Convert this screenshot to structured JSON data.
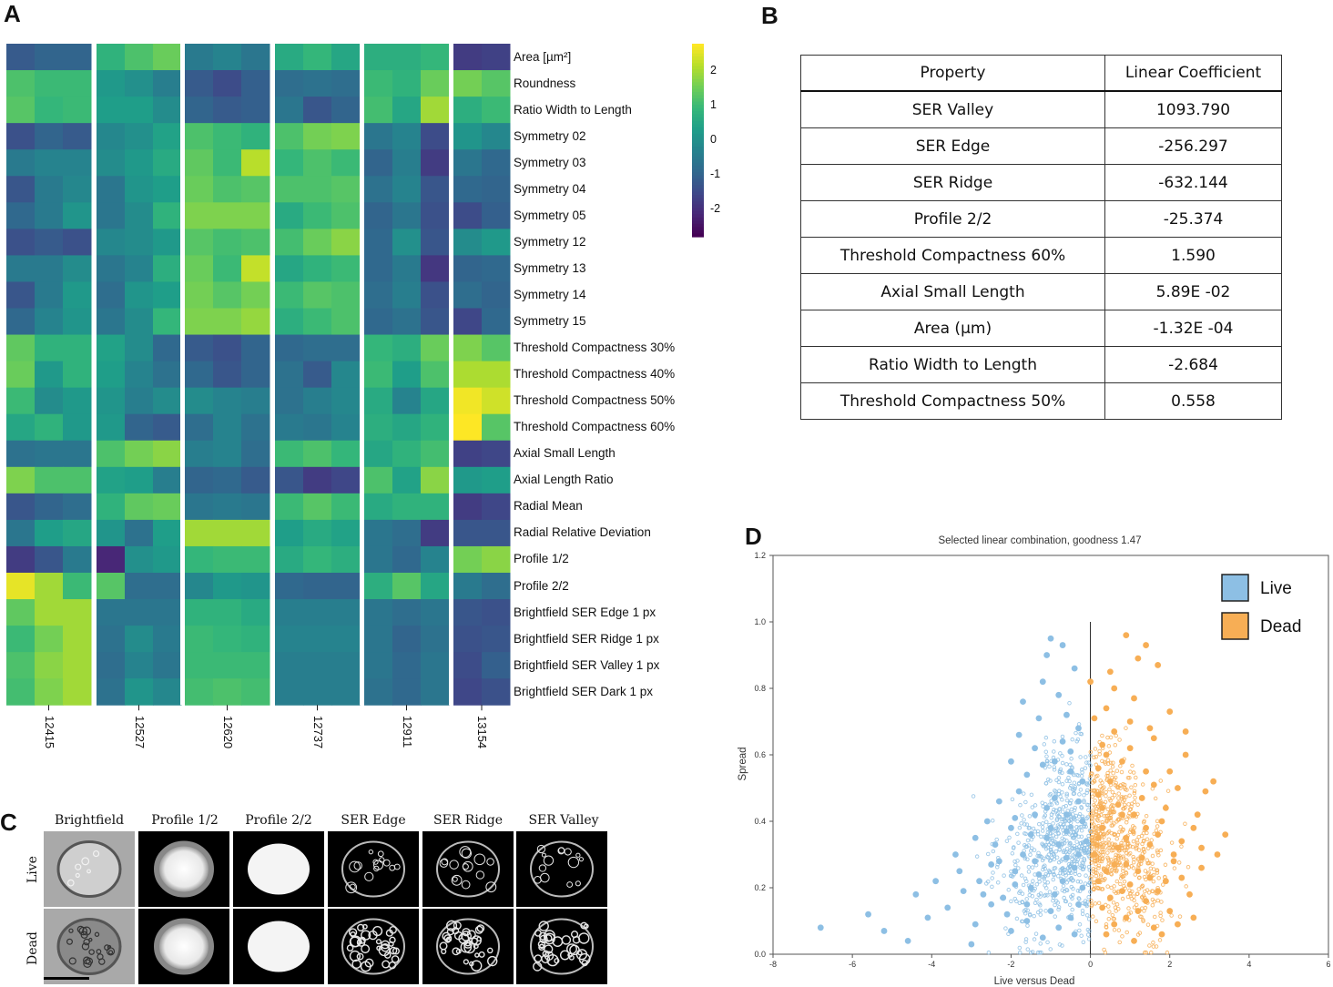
{
  "panels": {
    "a": "A",
    "b": "B",
    "c": "C",
    "d": "D"
  },
  "heatmap": {
    "features": [
      "Area [µm²]",
      "Roundness",
      "Ratio Width to Length",
      "Symmetry 02",
      "Symmetry 03",
      "Symmetry 04",
      "Symmetry 05",
      "Symmetry 12",
      "Symmetry 13",
      "Symmetry 14",
      "Symmetry 15",
      "Threshold Compactness 30%",
      "Threshold Compactness 40%",
      "Threshold Compactness 50%",
      "Threshold Compactness 60%",
      "Axial Small Length",
      "Axial Length Ratio",
      "Radial Mean",
      "Radial Relative Deviation",
      "Profile 1/2",
      "Profile 2/2",
      "Brightfield SER Edge 1 px",
      "Brightfield SER Ridge 1 px",
      "Brightfield SER Valley 1 px",
      "Brightfield SER Dark 1 px"
    ],
    "groups": [
      "12415",
      "12527",
      "12620",
      "12737",
      "12911",
      "13154"
    ],
    "colorbar_ticks": [
      "2",
      "1",
      "0",
      "-1",
      "-2"
    ],
    "colorbar_range": [
      -2.8,
      2.8
    ],
    "values": [
      [
        -1.2,
        -1.0,
        -1.0,
        0.8,
        1.2,
        1.5,
        -0.5,
        -0.3,
        -0.6,
        0.6,
        0.9,
        0.5,
        0.7,
        0.7,
        0.9,
        -1.8,
        -1.7
      ],
      [
        1.2,
        1.0,
        1.0,
        0.2,
        0.0,
        -0.4,
        -1.2,
        -1.5,
        -1.1,
        -0.8,
        -0.7,
        -0.8,
        1.0,
        0.8,
        1.5,
        1.6,
        1.3
      ],
      [
        1.3,
        0.9,
        1.0,
        0.3,
        0.3,
        -0.1,
        -1.0,
        -1.2,
        -1.1,
        -0.6,
        -1.3,
        -1.0,
        1.1,
        0.5,
        2.0,
        0.7,
        1.0
      ],
      [
        -1.4,
        -1.0,
        -1.2,
        -0.2,
        0.0,
        0.4,
        1.2,
        1.0,
        0.8,
        1.2,
        1.6,
        1.7,
        -0.6,
        -0.3,
        -1.5,
        0.1,
        -0.2
      ],
      [
        -0.5,
        -0.3,
        -0.3,
        -0.1,
        0.2,
        0.6,
        1.4,
        1.0,
        2.2,
        0.9,
        1.2,
        1.0,
        -1.0,
        -0.4,
        -1.8,
        -0.6,
        -0.9
      ],
      [
        -1.3,
        -0.5,
        -0.2,
        -0.6,
        0.1,
        0.3,
        1.5,
        1.2,
        1.3,
        1.2,
        1.2,
        1.3,
        -0.7,
        -0.3,
        -1.3,
        -0.9,
        -1.0
      ],
      [
        -0.9,
        -0.5,
        0.1,
        -0.6,
        -0.1,
        0.8,
        1.7,
        1.7,
        1.7,
        0.6,
        1.0,
        1.2,
        -1.0,
        -0.6,
        -1.4,
        -1.5,
        -1.1
      ],
      [
        -1.4,
        -1.2,
        -1.4,
        -0.2,
        -0.1,
        0.2,
        1.3,
        1.1,
        1.2,
        1.1,
        1.5,
        1.8,
        -0.9,
        0.0,
        -1.3,
        -0.1,
        0.2
      ],
      [
        -0.5,
        -0.5,
        -0.1,
        -0.6,
        -0.3,
        0.7,
        1.5,
        1.0,
        2.3,
        0.5,
        0.8,
        1.0,
        -0.9,
        -0.5,
        -1.9,
        -1.0,
        -0.9
      ],
      [
        -1.3,
        -0.5,
        0.2,
        -0.8,
        0.1,
        0.3,
        1.6,
        1.3,
        1.6,
        1.0,
        1.3,
        1.2,
        -0.8,
        -0.4,
        -1.4,
        -0.8,
        -1.0
      ],
      [
        -0.9,
        -0.3,
        0.1,
        -0.6,
        -0.1,
        0.9,
        1.7,
        1.7,
        1.9,
        0.7,
        1.0,
        1.2,
        -0.9,
        -0.7,
        -1.3,
        -1.6,
        -0.9
      ],
      [
        1.4,
        0.8,
        0.8,
        0.4,
        -0.1,
        -0.9,
        -1.2,
        -1.4,
        -1.0,
        -0.9,
        -0.8,
        -0.8,
        0.9,
        0.7,
        1.5,
        1.7,
        1.3
      ],
      [
        1.5,
        0.2,
        0.8,
        0.3,
        -0.3,
        -0.7,
        -0.9,
        -1.3,
        -1.0,
        -0.7,
        -1.2,
        -0.2,
        1.0,
        0.3,
        1.2,
        2.1,
        2.1
      ],
      [
        1.0,
        -0.1,
        0.2,
        0.1,
        -0.4,
        -0.1,
        -0.1,
        -0.3,
        -0.4,
        -0.7,
        -0.4,
        -0.2,
        0.6,
        -0.3,
        0.5,
        2.7,
        2.4
      ],
      [
        0.5,
        0.8,
        0.2,
        0.2,
        -1.0,
        -1.2,
        -0.8,
        -0.3,
        -0.7,
        -0.5,
        -0.6,
        -0.3,
        0.7,
        0.5,
        0.8,
        2.8,
        1.3
      ],
      [
        -0.7,
        -0.6,
        -0.6,
        1.2,
        1.6,
        1.8,
        -0.4,
        -0.3,
        -0.8,
        1.0,
        1.2,
        0.9,
        0.5,
        0.8,
        1.1,
        -1.7,
        -1.6
      ],
      [
        1.7,
        1.2,
        1.2,
        0.4,
        0.3,
        -0.4,
        -1.0,
        -0.9,
        -1.2,
        -1.3,
        -1.8,
        -1.6,
        1.2,
        0.4,
        1.8,
        0.2,
        0.3
      ],
      [
        -1.3,
        -1.0,
        -0.8,
        0.8,
        1.4,
        1.5,
        -0.6,
        -0.5,
        -0.6,
        1.0,
        1.3,
        1.0,
        0.6,
        0.8,
        0.8,
        -1.8,
        -1.6
      ],
      [
        -0.6,
        0.3,
        0.5,
        0.1,
        -0.7,
        0.3,
        2.0,
        2.0,
        2.0,
        0.3,
        0.6,
        0.4,
        -0.6,
        -0.8,
        -1.8,
        -1.3,
        -1.3
      ],
      [
        -1.8,
        -1.3,
        -0.5,
        -2.2,
        0.0,
        0.2,
        0.9,
        1.0,
        1.0,
        0.6,
        0.9,
        0.7,
        -0.6,
        -0.9,
        -0.3,
        1.6,
        1.8
      ],
      [
        2.6,
        2.0,
        1.0,
        1.3,
        -0.8,
        -0.8,
        -0.2,
        0.2,
        0.1,
        -0.9,
        -1.0,
        -1.0,
        0.7,
        1.3,
        0.5,
        -0.5,
        -0.8
      ],
      [
        1.4,
        2.0,
        2.0,
        -0.6,
        -0.6,
        -0.6,
        0.8,
        0.8,
        0.6,
        -0.4,
        -0.4,
        -0.4,
        -0.6,
        -0.8,
        -0.6,
        -1.3,
        -1.4
      ],
      [
        1.0,
        1.6,
        2.0,
        -0.7,
        -0.1,
        -0.5,
        1.0,
        0.9,
        0.8,
        -0.3,
        -0.3,
        -0.3,
        -0.6,
        -1.0,
        -0.7,
        -1.4,
        -1.3
      ],
      [
        1.2,
        1.8,
        2.0,
        -0.8,
        -0.3,
        -0.6,
        1.0,
        1.0,
        1.0,
        -0.4,
        -0.4,
        -0.4,
        -0.6,
        -0.9,
        -0.6,
        -1.5,
        -1.1
      ],
      [
        1.1,
        1.7,
        2.0,
        -0.7,
        0.1,
        -0.2,
        1.1,
        1.2,
        1.1,
        -0.4,
        -0.4,
        -0.4,
        -0.7,
        -0.9,
        -0.6,
        -1.6,
        -1.4
      ]
    ]
  },
  "coef_table": {
    "headers": [
      "Property",
      "Linear Coefficient"
    ],
    "rows": [
      [
        "SER Valley",
        "1093.790"
      ],
      [
        "SER Edge",
        "-256.297"
      ],
      [
        "SER Ridge",
        "-632.144"
      ],
      [
        "Profile 2/2",
        "-25.374"
      ],
      [
        "Threshold Compactness 60%",
        "1.590"
      ],
      [
        "Axial Small Length",
        "5.89E  -02"
      ],
      [
        "Area (µm)",
        "-1.32E  -04"
      ],
      [
        "Ratio Width to Length",
        "-2.684"
      ],
      [
        "Threshold Compactness 50%",
        "0.558"
      ]
    ]
  },
  "micrographs": {
    "columns": [
      "Brightfield",
      "Profile 1/2",
      "Profile 2/2",
      "SER Edge",
      "SER Ridge",
      "SER Valley"
    ],
    "rows": [
      "Live",
      "Dead"
    ]
  },
  "chart_data": {
    "type": "scatter",
    "title": "Selected linear combination, goodness 1.47",
    "xlabel": "Live versus Dead",
    "ylabel": "Spread",
    "xlim": [
      -8,
      6
    ],
    "ylim": [
      0.0,
      1.2
    ],
    "xticks": [
      "-8",
      "-6",
      "-4",
      "-2",
      "0",
      "2",
      "4",
      "6"
    ],
    "yticks": [
      "0.0",
      "0.2",
      "0.4",
      "0.6",
      "0.8",
      "1.0",
      "1.2"
    ],
    "legend": {
      "position": "top-right",
      "entries": [
        {
          "label": "Live",
          "color": "#8dbfe4"
        },
        {
          "label": "Dead",
          "color": "#f7ae55"
        }
      ]
    },
    "series": [
      {
        "name": "Live",
        "color": "#8dbfe4",
        "points": [
          [
            -1.0,
            0.95
          ],
          [
            -1.7,
            0.76
          ],
          [
            -1.2,
            0.82
          ],
          [
            -0.8,
            0.78
          ],
          [
            -0.6,
            0.72
          ],
          [
            -0.3,
            0.68
          ],
          [
            -1.4,
            0.62
          ],
          [
            -0.9,
            0.58
          ],
          [
            -0.5,
            0.55
          ],
          [
            -2.3,
            0.46
          ],
          [
            -1.8,
            0.49
          ],
          [
            -1.1,
            0.44
          ],
          [
            -0.6,
            0.42
          ],
          [
            -0.2,
            0.4
          ],
          [
            -2.0,
            0.38
          ],
          [
            -1.5,
            0.36
          ],
          [
            -0.8,
            0.33
          ],
          [
            -0.3,
            0.3
          ],
          [
            -2.5,
            0.27
          ],
          [
            -1.9,
            0.25
          ],
          [
            -1.3,
            0.24
          ],
          [
            -0.7,
            0.22
          ],
          [
            -0.2,
            0.2
          ],
          [
            -2.8,
            0.22
          ],
          [
            -3.2,
            0.19
          ],
          [
            -2.2,
            0.17
          ],
          [
            -1.6,
            0.15
          ],
          [
            -1.0,
            0.13
          ],
          [
            -0.5,
            0.11
          ],
          [
            -3.6,
            0.14
          ],
          [
            -4.1,
            0.11
          ],
          [
            -2.9,
            0.09
          ],
          [
            -2.0,
            0.07
          ],
          [
            -1.2,
            0.05
          ],
          [
            -0.4,
            0.06
          ],
          [
            -5.2,
            0.07
          ],
          [
            -6.8,
            0.08
          ],
          [
            -4.6,
            0.04
          ],
          [
            -3.0,
            0.03
          ],
          [
            -1.7,
            0.3
          ],
          [
            -1.1,
            0.35
          ],
          [
            -0.4,
            0.26
          ],
          [
            -2.4,
            0.33
          ],
          [
            -1.4,
            0.28
          ],
          [
            -0.9,
            0.47
          ],
          [
            -0.2,
            0.52
          ],
          [
            -1.6,
            0.54
          ],
          [
            -0.7,
            0.64
          ],
          [
            -1.3,
            0.71
          ],
          [
            -0.4,
            0.86
          ],
          [
            -2.6,
            0.4
          ],
          [
            -3.4,
            0.3
          ],
          [
            -3.9,
            0.22
          ],
          [
            -2.7,
            0.18
          ],
          [
            -1.9,
            0.41
          ],
          [
            -1.0,
            0.38
          ],
          [
            -0.1,
            0.34
          ],
          [
            -0.6,
            0.29
          ],
          [
            -1.5,
            0.2
          ],
          [
            -2.1,
            0.12
          ],
          [
            -0.9,
            0.18
          ],
          [
            -0.3,
            0.15
          ],
          [
            -2.3,
            0.28
          ],
          [
            -1.2,
            0.57
          ],
          [
            -0.5,
            0.61
          ],
          [
            -1.8,
            0.66
          ],
          [
            -1.4,
            0.42
          ],
          [
            -2.9,
            0.35
          ],
          [
            -4.4,
            0.18
          ],
          [
            -5.6,
            0.12
          ],
          [
            -1.1,
            0.9
          ],
          [
            -0.7,
            0.93
          ],
          [
            -2.0,
            0.58
          ],
          [
            -0.3,
            0.46
          ],
          [
            -1.6,
            0.1
          ],
          [
            -0.8,
            0.08
          ],
          [
            -2.5,
            0.15
          ],
          [
            -3.3,
            0.25
          ],
          [
            -1.9,
            0.21
          ],
          [
            -0.6,
            0.37
          ]
        ]
      },
      {
        "name": "Dead",
        "color": "#f7ae55",
        "points": [
          [
            0.0,
            0.82
          ],
          [
            0.6,
            0.8
          ],
          [
            1.2,
            0.89
          ],
          [
            1.7,
            0.87
          ],
          [
            2.0,
            0.73
          ],
          [
            0.4,
            0.74
          ],
          [
            1.0,
            0.7
          ],
          [
            1.6,
            0.65
          ],
          [
            2.4,
            0.6
          ],
          [
            0.3,
            0.63
          ],
          [
            0.8,
            0.58
          ],
          [
            1.4,
            0.55
          ],
          [
            2.2,
            0.5
          ],
          [
            2.9,
            0.49
          ],
          [
            0.2,
            0.48
          ],
          [
            0.7,
            0.45
          ],
          [
            1.1,
            0.42
          ],
          [
            1.8,
            0.4
          ],
          [
            2.6,
            0.38
          ],
          [
            3.2,
            0.3
          ],
          [
            0.3,
            0.38
          ],
          [
            0.9,
            0.35
          ],
          [
            1.5,
            0.33
          ],
          [
            2.1,
            0.3
          ],
          [
            2.8,
            0.26
          ],
          [
            0.1,
            0.3
          ],
          [
            0.6,
            0.27
          ],
          [
            1.2,
            0.25
          ],
          [
            1.9,
            0.22
          ],
          [
            2.5,
            0.18
          ],
          [
            0.2,
            0.22
          ],
          [
            0.8,
            0.19
          ],
          [
            1.4,
            0.16
          ],
          [
            2.0,
            0.13
          ],
          [
            0.3,
            0.14
          ],
          [
            0.9,
            0.11
          ],
          [
            1.6,
            0.08
          ],
          [
            0.4,
            0.06
          ],
          [
            1.1,
            0.04
          ],
          [
            2.2,
            0.09
          ],
          [
            0.5,
            0.52
          ],
          [
            1.3,
            0.47
          ],
          [
            1.9,
            0.44
          ],
          [
            0.2,
            0.56
          ],
          [
            1.0,
            0.62
          ],
          [
            1.5,
            0.68
          ],
          [
            0.6,
            0.67
          ],
          [
            0.1,
            0.71
          ],
          [
            2.4,
            0.67
          ],
          [
            3.1,
            0.52
          ],
          [
            0.7,
            0.32
          ],
          [
            1.3,
            0.29
          ],
          [
            1.7,
            0.36
          ],
          [
            2.3,
            0.34
          ],
          [
            0.4,
            0.25
          ],
          [
            1.0,
            0.21
          ],
          [
            1.7,
            0.19
          ],
          [
            2.3,
            0.23
          ],
          [
            0.5,
            0.17
          ],
          [
            1.2,
            0.13
          ],
          [
            0.8,
            0.42
          ],
          [
            1.6,
            0.51
          ],
          [
            0.3,
            0.44
          ],
          [
            2.7,
            0.42
          ],
          [
            1.1,
            0.77
          ],
          [
            0.5,
            0.85
          ],
          [
            1.4,
            0.93
          ],
          [
            0.9,
            0.96
          ],
          [
            2.1,
            0.28
          ],
          [
            3.4,
            0.36
          ],
          [
            0.6,
            0.09
          ],
          [
            1.8,
            0.06
          ],
          [
            2.6,
            0.11
          ],
          [
            0.2,
            0.35
          ],
          [
            1.4,
            0.38
          ],
          [
            2.0,
            0.55
          ],
          [
            0.9,
            0.27
          ],
          [
            1.5,
            0.23
          ],
          [
            2.8,
            0.32
          ],
          [
            0.4,
            0.6
          ]
        ]
      }
    ]
  }
}
